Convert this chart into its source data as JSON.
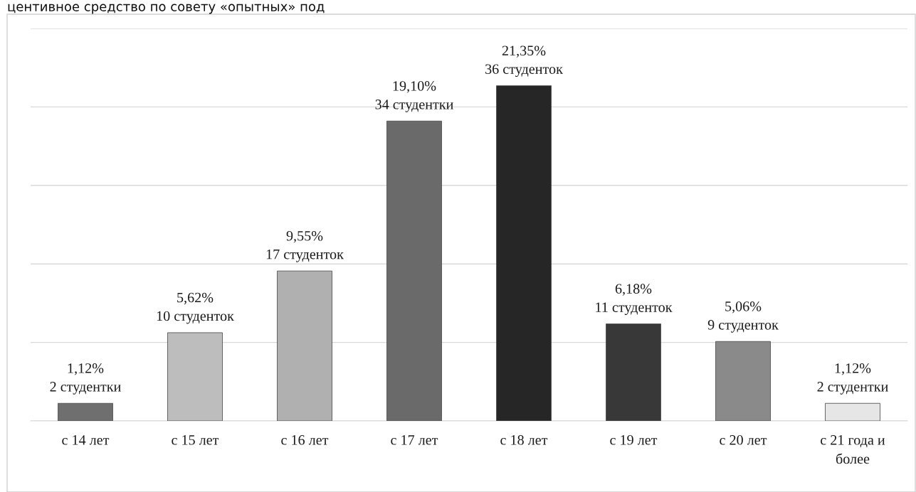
{
  "chart_data": {
    "type": "bar",
    "categories": [
      "с 14 лет",
      "с 15 лет",
      "с 16 лет",
      "с 17 лет",
      "с 18 лет",
      "с 19 лет",
      "с 20 лет",
      "с 21 года и\nболее"
    ],
    "values": [
      1.12,
      5.62,
      9.55,
      19.1,
      21.35,
      6.18,
      5.06,
      1.12
    ],
    "value_labels": [
      "1,12%\n2 студентки",
      "5,62%\n10 студенток",
      "9,55%\n17 студенток",
      "19,10%\n34 студентки",
      "21,35%\n36 студенток",
      "6,18%\n11 студенток",
      "5,06%\n9 студенток",
      "1,12%\n2 студентки"
    ],
    "colors": [
      "#6f6f6f",
      "#bdbdbd",
      "#b0b0b0",
      "#6a6a6a",
      "#262626",
      "#383838",
      "#8a8a8a",
      "#e6e6e6"
    ],
    "ylim": [
      0,
      25
    ],
    "yticks": [
      {
        "value": 0,
        "label": null
      },
      {
        "value": 5,
        "label": null
      },
      {
        "value": 10,
        "label": null
      },
      {
        "value": 15,
        "label": null
      },
      {
        "value": 20,
        "label": null
      },
      {
        "value": 25,
        "label": null
      }
    ],
    "tick_labels": "x",
    "grid": "y",
    "annotations": [
      "центивное средство по совету «опытных» под"
    ]
  }
}
